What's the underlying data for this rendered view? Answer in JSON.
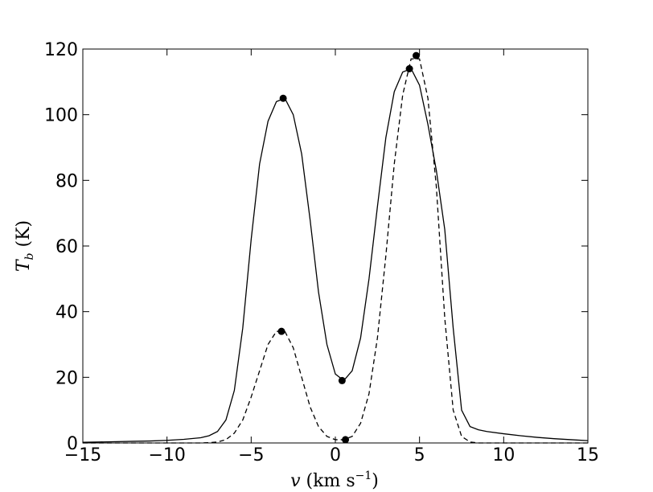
{
  "chart_data": {
    "type": "line",
    "xlabel": [
      "v",
      " (km s",
      "−1",
      ")"
    ],
    "ylabel": [
      "T",
      "b",
      " (K)"
    ],
    "x": [
      -15,
      -14,
      -13,
      -12,
      -11,
      -10,
      -9,
      -8,
      -7.5,
      -7,
      -6.5,
      -6,
      -5.5,
      -5,
      -4.5,
      -4,
      -3.5,
      -3,
      -2.5,
      -2,
      -1.5,
      -1,
      -0.5,
      0,
      0.5,
      1,
      1.5,
      2,
      2.5,
      3,
      3.5,
      4,
      4.5,
      5,
      5.5,
      6,
      6.5,
      7,
      7.5,
      8,
      8.5,
      9,
      10,
      11,
      12,
      13,
      14,
      15
    ],
    "series": [
      {
        "color": "#000000",
        "dash": false,
        "values": [
          0.2,
          0.3,
          0.4,
          0.5,
          0.6,
          0.8,
          1.1,
          1.6,
          2.2,
          3.5,
          7,
          16,
          35,
          62,
          85,
          98,
          104,
          105,
          100,
          88,
          68,
          46,
          30,
          21,
          19,
          22,
          32,
          50,
          72,
          93,
          107,
          113,
          114,
          109,
          97,
          83,
          65,
          35,
          10,
          5,
          4,
          3.5,
          2.8,
          2.2,
          1.7,
          1.3,
          1,
          0.7
        ],
        "points_x": [
          -3.1,
          0.4,
          4.4
        ],
        "points_y": [
          105,
          19,
          114
        ]
      },
      {
        "color": "#000000",
        "dash": true,
        "values": [
          0,
          0,
          0,
          0,
          0,
          0,
          0,
          0,
          0.1,
          0.3,
          1,
          3,
          7,
          14,
          22,
          30,
          34,
          34,
          29,
          20,
          11,
          5,
          2,
          1,
          1,
          2,
          6,
          15,
          32,
          57,
          85,
          106,
          117,
          117,
          105,
          78,
          38,
          10,
          2,
          0.3,
          0,
          0,
          0,
          0,
          0,
          0,
          0,
          0
        ],
        "points_x": [
          -3.2,
          0.6,
          4.8
        ],
        "points_y": [
          34,
          1,
          118
        ]
      }
    ],
    "xlim": [
      -15,
      15
    ],
    "xticks": [
      {
        "value": -15,
        "label": "−15"
      },
      {
        "value": -10,
        "label": "−10"
      },
      {
        "value": -5,
        "label": "−5"
      },
      0,
      5,
      10,
      15
    ],
    "ylim": [
      0,
      120
    ],
    "yticks": [
      0,
      20,
      40,
      60,
      80,
      100,
      120
    ],
    "grid": false
  }
}
